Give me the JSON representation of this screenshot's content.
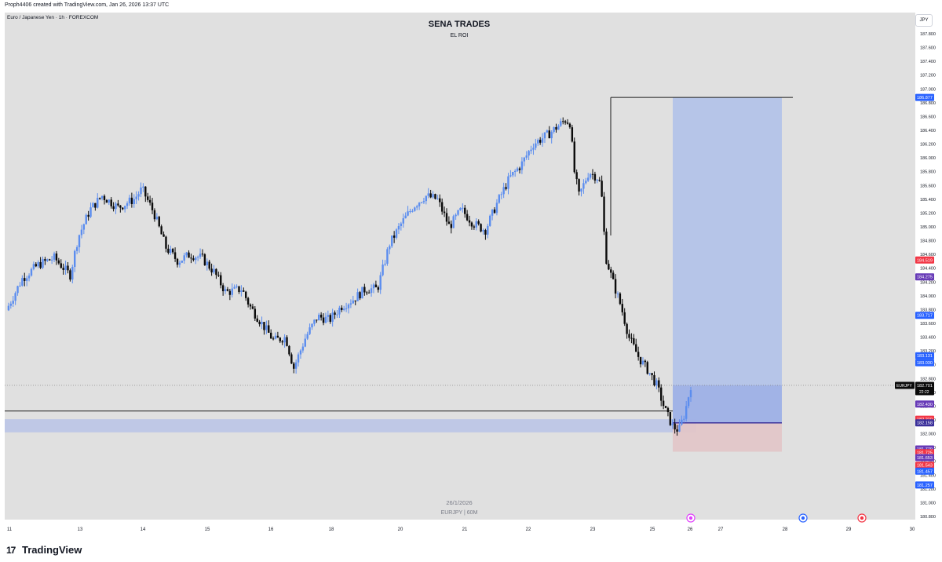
{
  "header": {
    "attribution": "Proph4406 created with TradingView.com, Jan 26, 2026 13:37 UTC"
  },
  "symbol_line": "Euro / Japanese Yen · 1h · FOREXCOM",
  "currency_button": "JPY",
  "watermark": {
    "date": "26/1/2026",
    "symbol": "EURJPY | 60M"
  },
  "brand": "TradingView",
  "colors": {
    "up": "#5b8def",
    "down": "#0a0a0a",
    "bg": "#e0e0e0",
    "target_zone": "#b3c3e8",
    "stop_zone": "#e2c6c8",
    "entry_line": "#3a2f9a"
  },
  "chart_data": {
    "type": "candlestick",
    "title": "SENA TRADES",
    "subtitle": "EL ROI",
    "ylim": [
      180.8,
      187.9
    ],
    "y_ticks": [
      "187.800",
      "187.600",
      "187.400",
      "187.200",
      "187.000",
      "186.800",
      "186.600",
      "186.400",
      "186.200",
      "186.000",
      "185.800",
      "185.600",
      "185.400",
      "185.200",
      "185.000",
      "184.800",
      "184.600",
      "184.400",
      "184.200",
      "184.000",
      "183.800",
      "183.600",
      "183.400",
      "183.200",
      "183.000",
      "182.800",
      "182.600",
      "182.400",
      "182.200",
      "182.000",
      "181.800",
      "181.600",
      "181.400",
      "181.200",
      "181.000",
      "180.800"
    ],
    "x_ticks": [
      {
        "label": "11",
        "day": 11
      },
      {
        "label": "13",
        "day": 13
      },
      {
        "label": "14",
        "day": 14
      },
      {
        "label": "15",
        "day": 15
      },
      {
        "label": "16",
        "day": 16
      },
      {
        "label": "18",
        "day": 18
      },
      {
        "label": "20",
        "day": 20
      },
      {
        "label": "21",
        "day": 21
      },
      {
        "label": "22",
        "day": 22
      },
      {
        "label": "23",
        "day": 23
      },
      {
        "label": "25",
        "day": 25
      },
      {
        "label": "26",
        "day": 26
      },
      {
        "label": "27",
        "day": 27
      },
      {
        "label": "28",
        "day": 28
      },
      {
        "label": "29",
        "day": 29
      },
      {
        "label": "30",
        "day": 30
      }
    ],
    "price_labels": [
      {
        "value": "186.877",
        "price": 186.877,
        "color": "#2962ff"
      },
      {
        "value": "184.519",
        "price": 184.519,
        "color": "#f23645"
      },
      {
        "value": "184.275",
        "price": 184.275,
        "color": "#673ab7"
      },
      {
        "value": "183.717",
        "price": 183.717,
        "color": "#2962ff"
      },
      {
        "value": "183.131",
        "price": 183.131,
        "color": "#2962ff"
      },
      {
        "value": "183.030",
        "price": 183.03,
        "color": "#2962ff"
      },
      {
        "value": "182.430",
        "price": 182.43,
        "color": "#673ab7"
      },
      {
        "value": "182.210",
        "price": 182.21,
        "color": "#f23645"
      },
      {
        "value": "182.158",
        "price": 182.158,
        "color": "#3a2f9a"
      },
      {
        "value": "181.779",
        "price": 181.779,
        "color": "#673ab7"
      },
      {
        "value": "181.725",
        "price": 181.725,
        "color": "#f23645"
      },
      {
        "value": "181.653",
        "price": 181.653,
        "color": "#673ab7"
      },
      {
        "value": "181.543",
        "price": 181.543,
        "color": "#f23645"
      },
      {
        "value": "181.457",
        "price": 181.457,
        "color": "#2962ff"
      },
      {
        "value": "181.257",
        "price": 181.257,
        "color": "#2962ff"
      }
    ],
    "last_price": {
      "symbol": "EURJPY",
      "price": "182.701",
      "countdown": "22:22",
      "value": 182.701
    },
    "position": {
      "entry": 182.158,
      "target": 186.877,
      "stop": 181.739,
      "start_day": 25.35,
      "end_day": 27.95
    },
    "zones": [
      {
        "from": 182.02,
        "to": 182.21,
        "start_day": 11,
        "end_day": 26.2
      }
    ],
    "lines": [
      {
        "price": 182.33,
        "start_day": 11,
        "end_day": 25.5
      },
      {
        "price": 186.877,
        "start_day": 23.3,
        "end_day": 28.15
      }
    ],
    "events": [
      {
        "day": 26.15,
        "icon": "lightning-icon",
        "color": "#e040fb"
      },
      {
        "day": 28.3,
        "icon": "flag-icon",
        "color": "#2962ff"
      },
      {
        "day": 29.2,
        "icon": "record-icon",
        "color": "#f23645"
      }
    ],
    "path": [
      [
        11.0,
        183.79
      ],
      [
        11.4,
        184.25
      ],
      [
        11.8,
        184.45
      ],
      [
        12.2,
        184.55
      ],
      [
        12.6,
        184.3
      ],
      [
        12.8,
        184.85
      ],
      [
        13.1,
        185.25
      ],
      [
        13.4,
        185.45
      ],
      [
        13.8,
        185.28
      ],
      [
        14.2,
        185.4
      ],
      [
        14.4,
        185.55
      ],
      [
        14.7,
        185.2
      ],
      [
        15.0,
        184.7
      ],
      [
        15.3,
        184.5
      ],
      [
        15.6,
        184.6
      ],
      [
        15.9,
        184.55
      ],
      [
        16.2,
        184.35
      ],
      [
        16.5,
        184.05
      ],
      [
        16.9,
        184.1
      ],
      [
        17.1,
        183.85
      ],
      [
        17.4,
        183.6
      ],
      [
        17.7,
        183.35
      ],
      [
        18.0,
        183.4
      ],
      [
        18.2,
        182.95
      ],
      [
        18.5,
        183.4
      ],
      [
        18.8,
        183.7
      ],
      [
        19.1,
        183.65
      ],
      [
        19.4,
        183.85
      ],
      [
        19.7,
        183.95
      ],
      [
        20.0,
        184.1
      ],
      [
        20.3,
        184.1
      ],
      [
        20.6,
        184.75
      ],
      [
        20.9,
        185.05
      ],
      [
        21.2,
        185.3
      ],
      [
        21.5,
        185.45
      ],
      [
        21.8,
        185.4
      ],
      [
        22.1,
        185.0
      ],
      [
        22.4,
        185.25
      ],
      [
        22.7,
        185.05
      ],
      [
        23.0,
        184.95
      ],
      [
        23.3,
        185.35
      ],
      [
        23.6,
        185.7
      ],
      [
        23.9,
        185.9
      ],
      [
        24.2,
        186.2
      ],
      [
        24.6,
        186.35
      ],
      [
        25.0,
        186.55
      ],
      [
        25.15,
        186.5
      ],
      [
        25.2,
        185.9
      ],
      [
        25.35,
        185.45
      ],
      [
        25.6,
        185.8
      ],
      [
        25.85,
        185.7
      ],
      [
        25.95,
        185.3
      ],
      [
        26.0,
        184.6
      ],
      [
        26.2,
        184.2
      ],
      [
        26.4,
        183.85
      ],
      [
        26.6,
        183.4
      ],
      [
        26.85,
        183.1
      ],
      [
        27.1,
        182.9
      ],
      [
        27.3,
        182.7
      ],
      [
        27.5,
        182.35
      ],
      [
        27.7,
        182.1
      ],
      [
        27.85,
        182.05
      ],
      [
        28.0,
        182.3
      ],
      [
        28.15,
        182.7
      ]
    ]
  }
}
